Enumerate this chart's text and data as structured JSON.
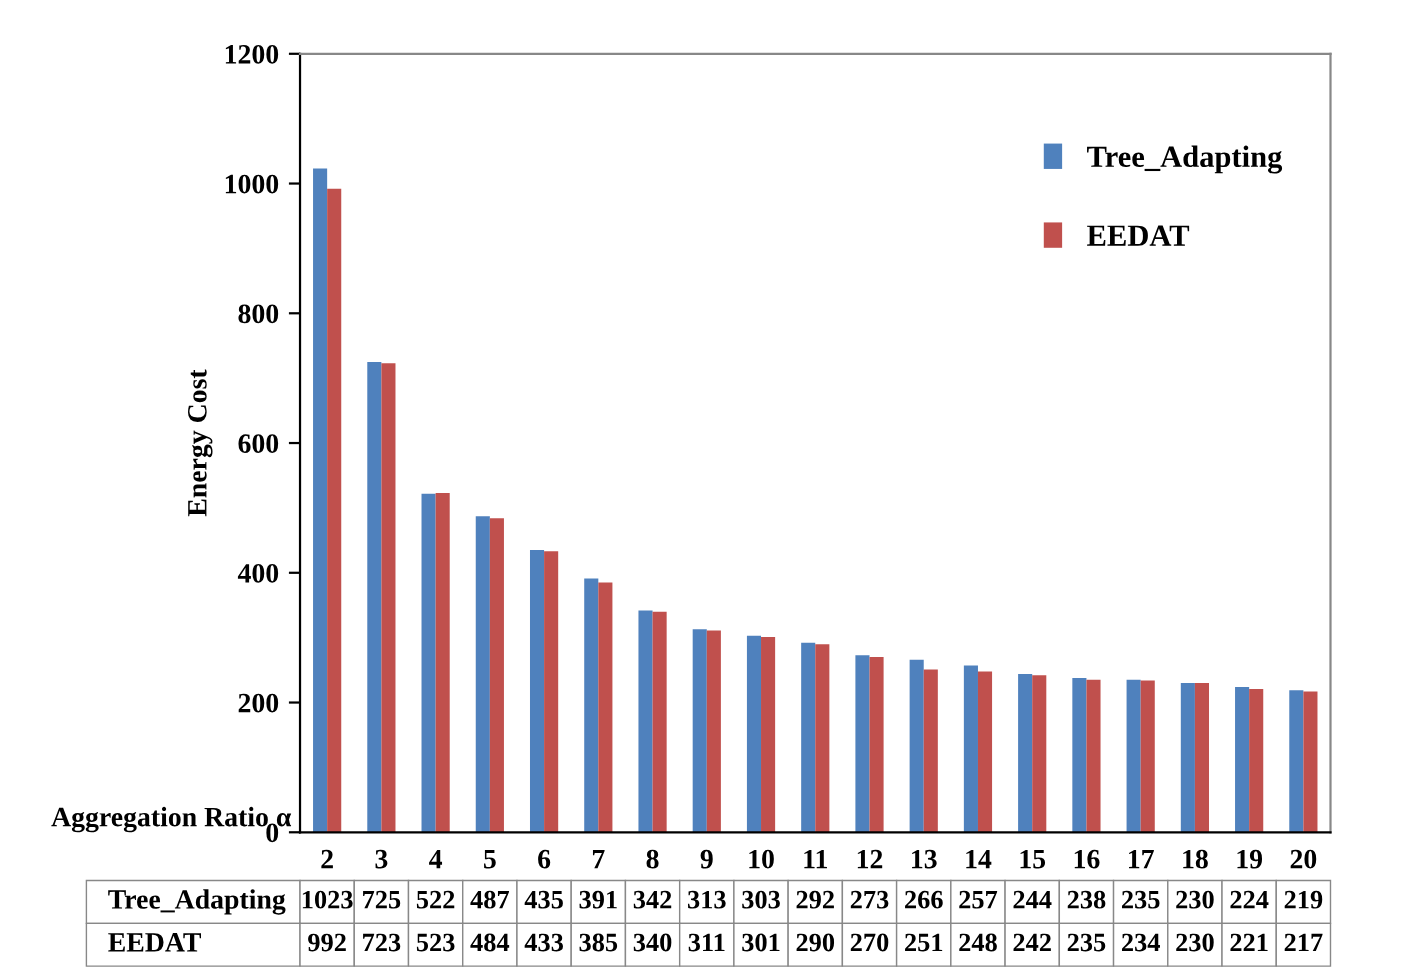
{
  "chart_data": {
    "type": "bar",
    "ylabel": "Energy Cost",
    "xlabel": "Aggregation Ratio α",
    "categories": [
      "2",
      "3",
      "4",
      "5",
      "6",
      "7",
      "8",
      "9",
      "10",
      "11",
      "12",
      "13",
      "14",
      "15",
      "16",
      "17",
      "18",
      "19",
      "20"
    ],
    "series": [
      {
        "name": "Tree_Adapting",
        "color": "#4f81bd",
        "values": [
          1023,
          725,
          522,
          487,
          435,
          391,
          342,
          313,
          303,
          292,
          273,
          266,
          257,
          244,
          238,
          235,
          230,
          224,
          219
        ]
      },
      {
        "name": "EEDAT",
        "color": "#c0504d",
        "values": [
          992,
          723,
          523,
          484,
          433,
          385,
          340,
          311,
          301,
          290,
          270,
          251,
          248,
          242,
          235,
          234,
          230,
          221,
          217
        ]
      }
    ],
    "ylim": [
      0,
      1200
    ],
    "yticks": [
      0,
      200,
      400,
      600,
      800,
      1000,
      1200
    ],
    "data_labels": true,
    "legend": "top right",
    "grid": false
  }
}
